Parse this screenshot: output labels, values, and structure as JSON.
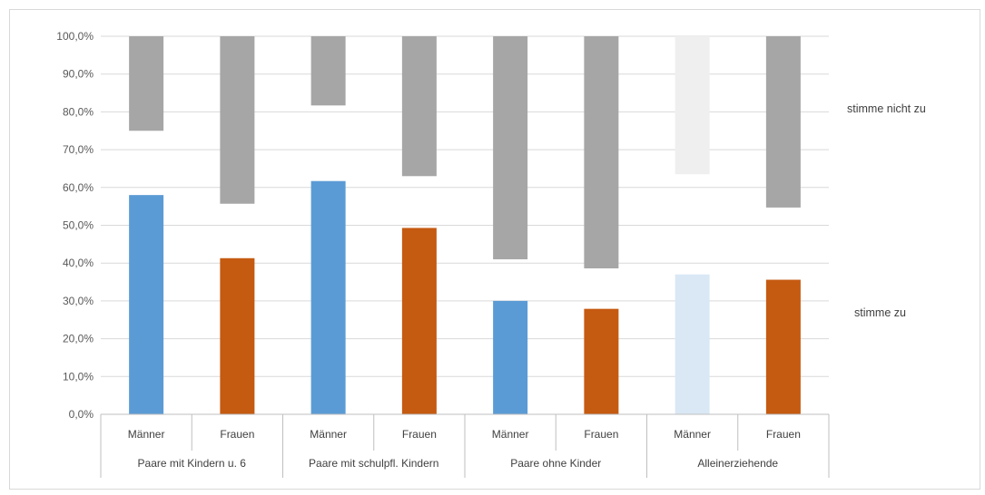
{
  "chart_data": {
    "type": "bar",
    "y_ticks": [
      "0,0%",
      "10,0%",
      "20,0%",
      "30,0%",
      "40,0%",
      "50,0%",
      "60,0%",
      "70,0%",
      "80,0%",
      "90,0%",
      "100,0%"
    ],
    "ylim": [
      0,
      100
    ],
    "groups": [
      {
        "label": "Paare mit Kindern u. 6",
        "categories": [
          "Männer",
          "Frauen"
        ]
      },
      {
        "label": "Paare mit schulpfl. Kindern",
        "categories": [
          "Männer",
          "Frauen"
        ]
      },
      {
        "label": "Paare ohne Kinder",
        "categories": [
          "Männer",
          "Frauen"
        ]
      },
      {
        "label": "Alleinerziehende",
        "categories": [
          "Männer",
          "Frauen"
        ]
      }
    ],
    "series": [
      {
        "name": "stimme zu",
        "values": [
          58.0,
          41.3,
          61.7,
          49.3,
          30.0,
          27.9,
          37.0,
          35.6
        ]
      },
      {
        "name": "stimme nicht zu",
        "values": [
          25.0,
          44.3,
          18.3,
          37.0,
          59.0,
          61.4,
          36.5,
          45.3
        ]
      }
    ],
    "bar_colors": {
      "zu": [
        "#5b9bd5",
        "#c55a11",
        "#5b9bd5",
        "#c55a11",
        "#5b9bd5",
        "#c55a11",
        "#dae8f5",
        "#c55a11"
      ],
      "nicht_zu": [
        "#a6a6a6",
        "#a6a6a6",
        "#a6a6a6",
        "#a6a6a6",
        "#a6a6a6",
        "#a6a6a6",
        "#efefef",
        "#a6a6a6"
      ]
    },
    "gridlines": true,
    "legend_placement": "right"
  }
}
